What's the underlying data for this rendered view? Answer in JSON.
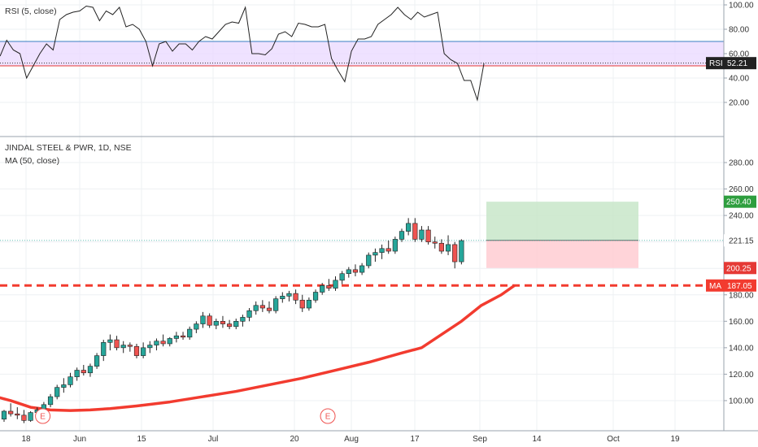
{
  "colors": {
    "up": "#26a69a",
    "down": "#ef5350",
    "ma": "#f23b2f",
    "rsi_line": "#222222",
    "rsi_band_fill": "#ead8ff",
    "rsi_upper": "#3a7fc1",
    "rsi_lower": "#e53935",
    "target_zone": "#c8e6c9",
    "stop_zone": "#ffcdd2",
    "target_tag": "#2e9e3e",
    "stop_tag": "#e53935",
    "ma_tag": "#f23b2f",
    "rsi_tag": "#222222"
  },
  "rsi_panel": {
    "legend": "RSI (5, close)",
    "ticks": [
      "100.00",
      "80.00",
      "60.00",
      "40.00",
      "20.00"
    ],
    "tag_label": "RSI",
    "tag_value": "52.21"
  },
  "price_panel": {
    "legend_title": "JINDAL STEEL & PWR, 1D, NSE",
    "legend_ma": "MA (50, close)",
    "ticks": [
      "280.00",
      "260.00",
      "240.00",
      "220.00",
      "200.00",
      "180.00",
      "160.00",
      "140.00",
      "120.00",
      "100.00"
    ],
    "target_tag": "250.40",
    "current_tag": "221.15",
    "stop_tag": "200.25",
    "ma_tag_label": "MA",
    "ma_tag_value": "187.05",
    "earnings_marker": "E"
  },
  "time_axis": {
    "labels": [
      "18",
      "Jun",
      "15",
      "Jul",
      "20",
      "Aug",
      "17",
      "Sep",
      "14",
      "Oct",
      "19"
    ]
  },
  "chart_data": [
    {
      "type": "line",
      "title": "RSI (5, close)",
      "ylim": [
        10,
        102
      ],
      "levels": [
        70,
        50
      ],
      "current": 52.21,
      "values": [
        58,
        71,
        63,
        60,
        40,
        50,
        60,
        68,
        63,
        88,
        92,
        94,
        95,
        99,
        98,
        87,
        95,
        92,
        98,
        82,
        84,
        80,
        70,
        50,
        68,
        70,
        62,
        68,
        68,
        63,
        70,
        74,
        72,
        78,
        84,
        86,
        85,
        98,
        60,
        60,
        59,
        64,
        76,
        78,
        74,
        85,
        84,
        82,
        82,
        84,
        56,
        46,
        37,
        62,
        72,
        72,
        74,
        84,
        88,
        92,
        98,
        92,
        88,
        94,
        90,
        92,
        94,
        60,
        55,
        52,
        38,
        38,
        22,
        52
      ]
    },
    {
      "type": "candlestick",
      "title": "JINDAL STEEL & PWR, 1D, NSE",
      "ylim": [
        79,
        292
      ],
      "candles": [
        [
          86,
          93,
          84,
          92
        ],
        [
          92,
          98,
          88,
          90
        ],
        [
          90,
          95,
          86,
          89
        ],
        [
          89,
          93,
          83,
          85
        ],
        [
          85,
          92,
          84,
          91
        ],
        [
          91,
          95,
          88,
          93
        ],
        [
          93,
          99,
          90,
          97
        ],
        [
          97,
          105,
          95,
          103
        ],
        [
          103,
          112,
          101,
          110
        ],
        [
          110,
          117,
          106,
          112
        ],
        [
          112,
          121,
          110,
          118
        ],
        [
          118,
          125,
          115,
          123
        ],
        [
          123,
          127,
          119,
          121
        ],
        [
          121,
          128,
          118,
          126
        ],
        [
          126,
          136,
          124,
          134
        ],
        [
          134,
          146,
          130,
          144
        ],
        [
          144,
          150,
          138,
          146
        ],
        [
          146,
          149,
          138,
          140
        ],
        [
          140,
          145,
          136,
          142
        ],
        [
          142,
          144,
          137,
          141
        ],
        [
          141,
          143,
          132,
          134
        ],
        [
          134,
          144,
          132,
          140
        ],
        [
          140,
          145,
          136,
          142
        ],
        [
          142,
          147,
          138,
          145
        ],
        [
          145,
          150,
          141,
          143
        ],
        [
          143,
          148,
          141,
          147
        ],
        [
          147,
          152,
          144,
          149
        ],
        [
          149,
          152,
          146,
          148
        ],
        [
          148,
          156,
          146,
          154
        ],
        [
          154,
          160,
          151,
          158
        ],
        [
          158,
          167,
          155,
          164
        ],
        [
          164,
          166,
          155,
          157
        ],
        [
          157,
          162,
          154,
          160
        ],
        [
          160,
          164,
          155,
          158
        ],
        [
          158,
          161,
          154,
          156
        ],
        [
          156,
          162,
          154,
          160
        ],
        [
          160,
          165,
          156,
          163
        ],
        [
          163,
          170,
          160,
          168
        ],
        [
          168,
          175,
          165,
          172
        ],
        [
          172,
          176,
          167,
          170
        ],
        [
          170,
          175,
          166,
          168
        ],
        [
          168,
          179,
          166,
          177
        ],
        [
          177,
          182,
          174,
          179
        ],
        [
          179,
          183,
          175,
          181
        ],
        [
          181,
          184,
          173,
          176
        ],
        [
          176,
          180,
          167,
          170
        ],
        [
          170,
          178,
          168,
          176
        ],
        [
          176,
          184,
          174,
          182
        ],
        [
          182,
          189,
          180,
          187
        ],
        [
          187,
          192,
          183,
          185
        ],
        [
          185,
          194,
          183,
          191
        ],
        [
          191,
          198,
          188,
          196
        ],
        [
          196,
          201,
          193,
          199
        ],
        [
          199,
          203,
          194,
          197
        ],
        [
          197,
          204,
          195,
          202
        ],
        [
          202,
          212,
          200,
          210
        ],
        [
          210,
          215,
          205,
          212
        ],
        [
          212,
          218,
          207,
          215
        ],
        [
          215,
          221,
          211,
          213
        ],
        [
          213,
          224,
          211,
          222
        ],
        [
          222,
          230,
          220,
          228
        ],
        [
          228,
          238,
          225,
          234
        ],
        [
          234,
          238,
          220,
          222
        ],
        [
          222,
          232,
          220,
          229
        ],
        [
          229,
          232,
          218,
          220
        ],
        [
          220,
          224,
          215,
          219
        ],
        [
          219,
          222,
          211,
          213
        ],
        [
          213,
          225,
          210,
          218
        ],
        [
          218,
          220,
          200,
          205
        ],
        [
          205,
          222,
          203,
          221
        ]
      ],
      "ma_50": [
        [
          -2,
          104
        ],
        [
          1,
          100
        ],
        [
          4,
          95
        ],
        [
          7,
          93
        ],
        [
          10,
          92.5
        ],
        [
          13,
          93
        ],
        [
          16,
          94
        ],
        [
          20,
          96
        ],
        [
          25,
          99
        ],
        [
          30,
          103
        ],
        [
          35,
          107
        ],
        [
          40,
          112
        ],
        [
          45,
          117
        ],
        [
          50,
          123
        ],
        [
          55,
          129
        ],
        [
          60,
          136
        ],
        [
          63,
          140
        ],
        [
          66,
          150
        ],
        [
          69,
          160
        ],
        [
          72,
          172
        ],
        [
          75,
          180
        ],
        [
          77,
          187.05
        ]
      ],
      "position": {
        "entry": 221.15,
        "target": 250.4,
        "stop": 200.25
      },
      "ma_current": 187.05,
      "earnings_bars": [
        4,
        47
      ],
      "x_labels": [
        "18",
        "Jun",
        "15",
        "Jul",
        "20",
        "Aug",
        "17",
        "Sep",
        "14",
        "Oct",
        "19"
      ]
    }
  ]
}
